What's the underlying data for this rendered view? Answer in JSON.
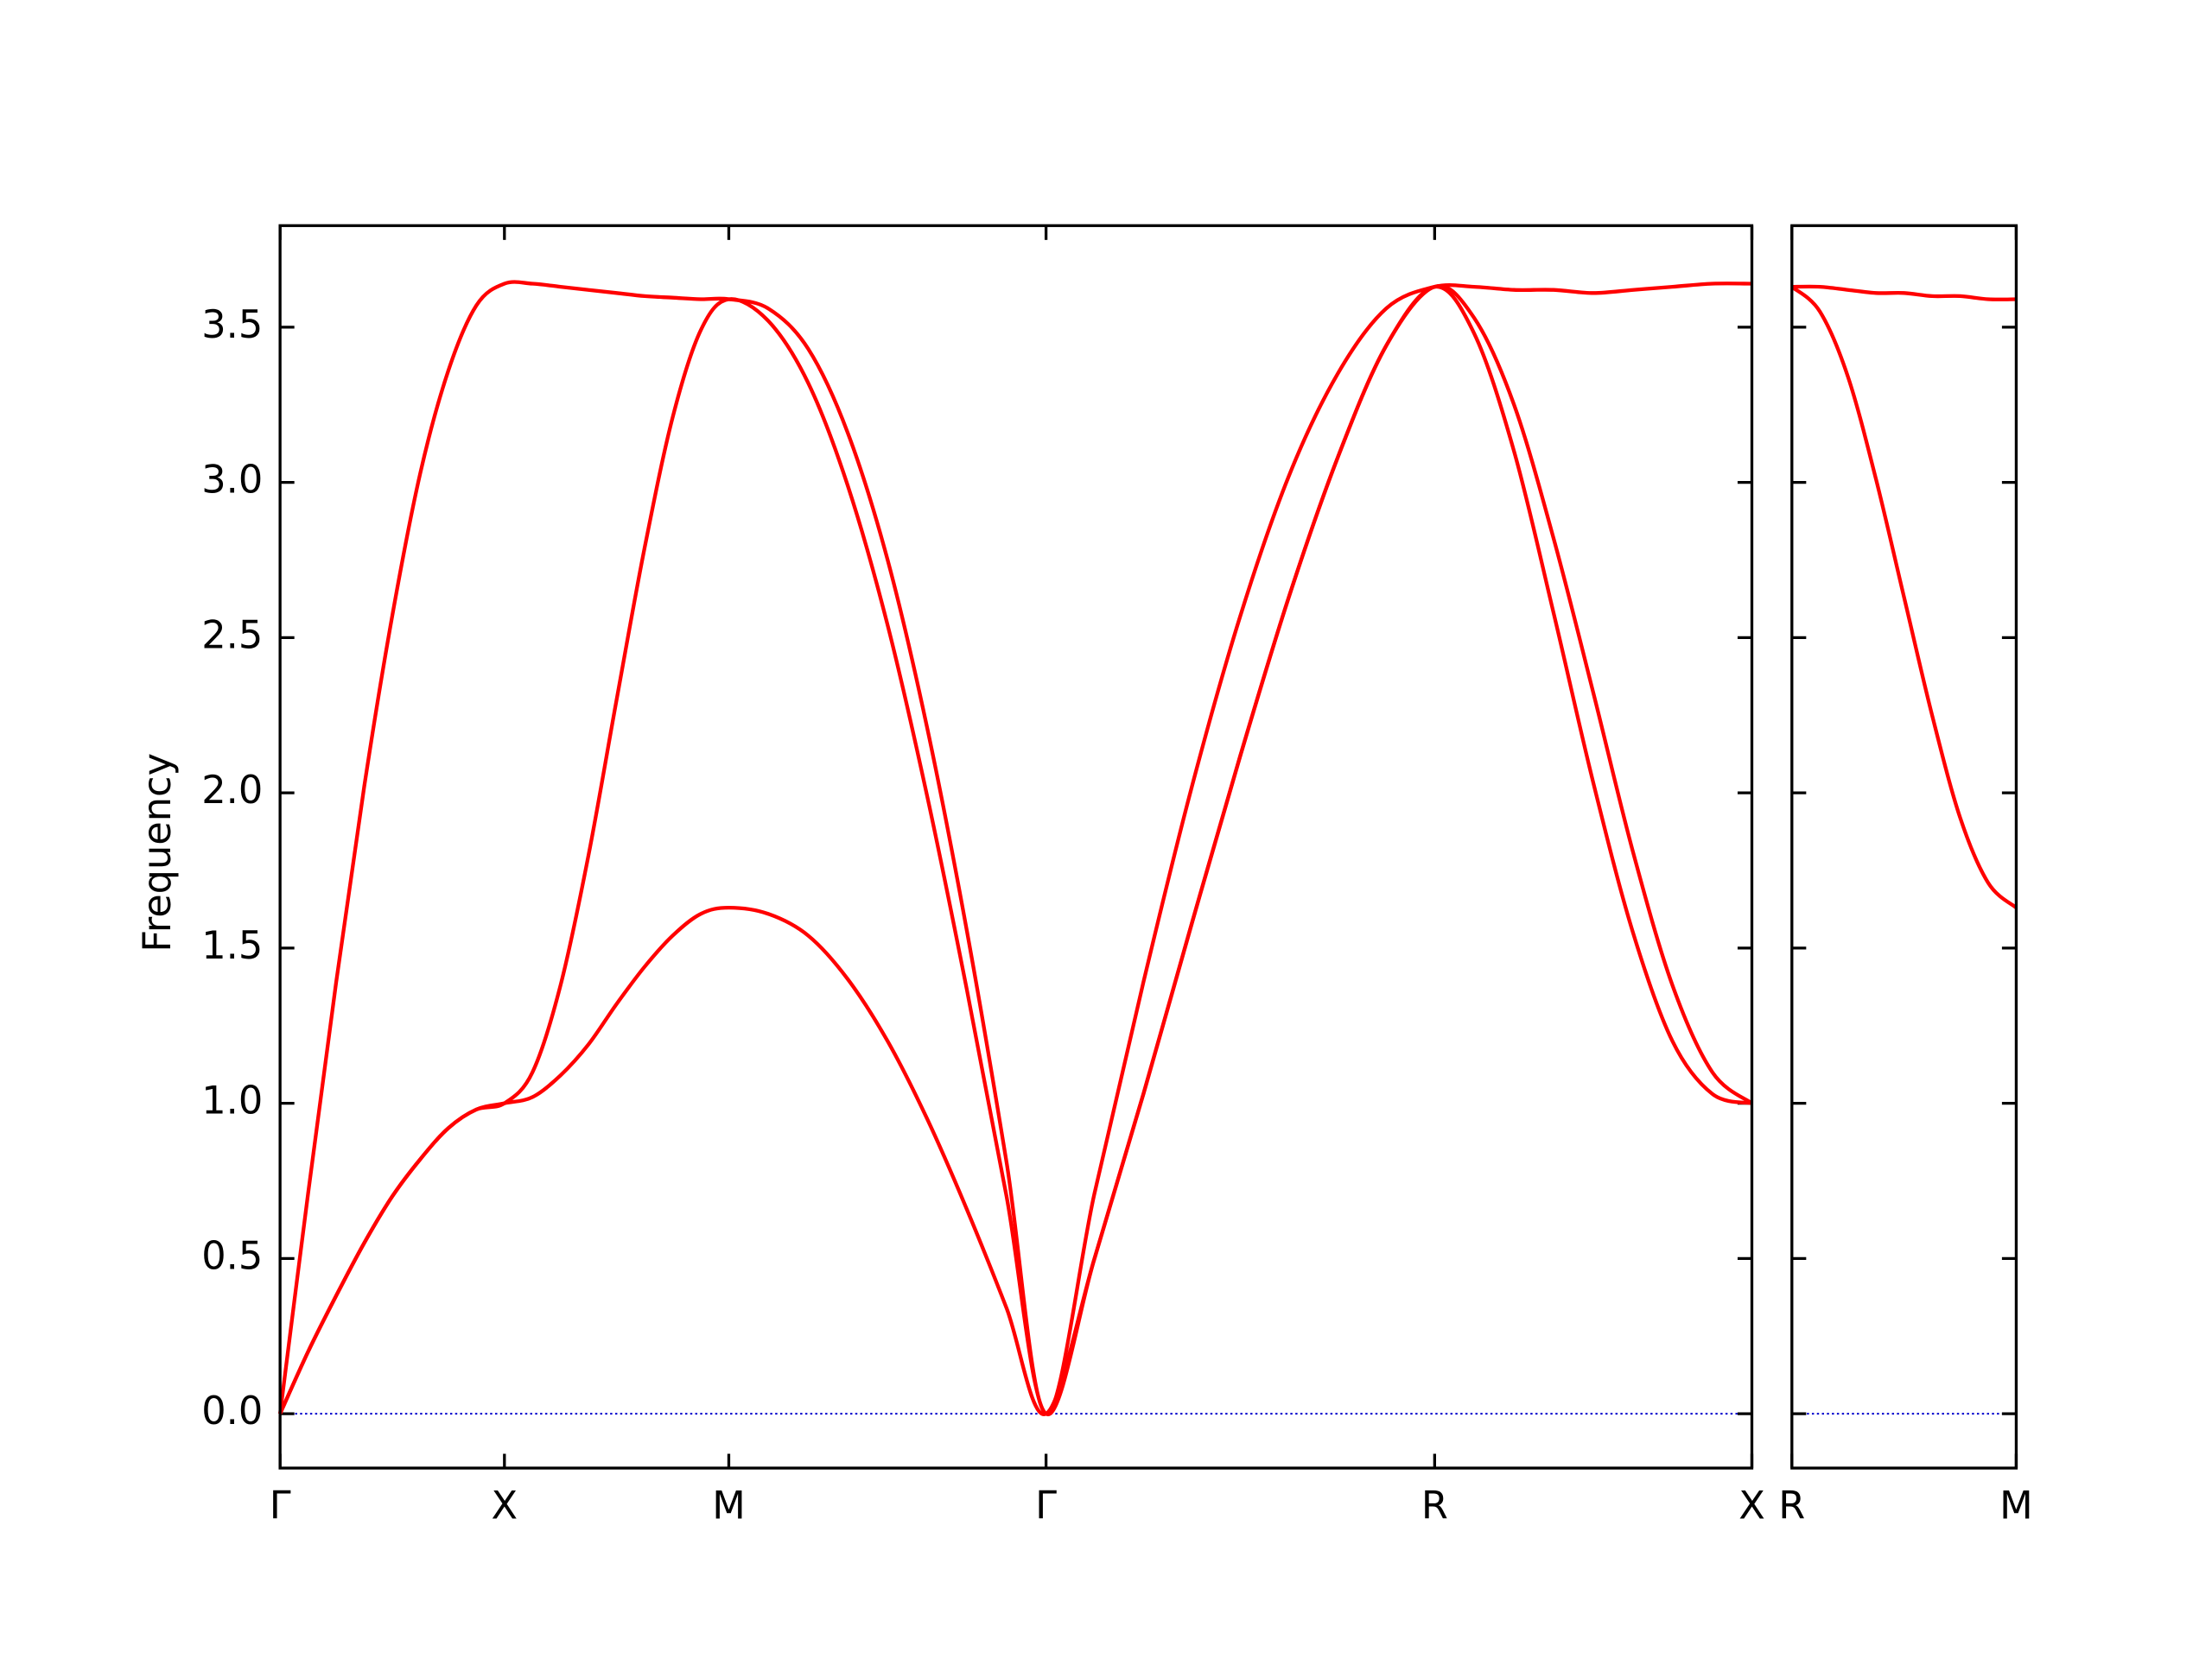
{
  "chart_data": [
    {
      "type": "line",
      "ylabel": "Frequency",
      "x": [
        0,
        0.0625,
        0.125,
        0.1875,
        0.25,
        0.3125,
        0.375,
        0.4375,
        0.5,
        0.5625,
        0.625,
        0.6875,
        0.75,
        0.8125,
        0.875,
        0.9375,
        1.0,
        1.088,
        1.177,
        1.265,
        1.354,
        1.442,
        1.53,
        1.619,
        1.707,
        1.815,
        1.924,
        2.032,
        2.14,
        2.248,
        2.357,
        2.465,
        2.573,
        2.661,
        2.75,
        2.838,
        2.927,
        3.015,
        3.103,
        3.192,
        3.28
      ],
      "series": [
        {
          "color": "#ff0000",
          "values": [
            0,
            0.2,
            0.38,
            0.55,
            0.7,
            0.82,
            0.92,
            0.98,
            1.0,
            1.02,
            1.09,
            1.19,
            1.32,
            1.44,
            1.54,
            1.61,
            1.63,
            1.61,
            1.54,
            1.4,
            1.2,
            0.95,
            0.66,
            0.34,
            0,
            0.5,
            1.03,
            1.58,
            2.12,
            2.63,
            3.08,
            3.44,
            3.63,
            3.48,
            3.1,
            2.58,
            2.03,
            1.55,
            1.2,
            1.03,
            1.0
          ]
        },
        {
          "color": "#ff0000",
          "values": [
            0,
            0.2,
            0.38,
            0.55,
            0.7,
            0.82,
            0.92,
            0.98,
            1.0,
            1.1,
            1.38,
            1.8,
            2.3,
            2.79,
            3.21,
            3.49,
            3.59,
            3.52,
            3.32,
            2.99,
            2.54,
            1.99,
            1.37,
            0.7,
            0,
            0.5,
            1.03,
            1.58,
            2.12,
            2.63,
            3.08,
            3.44,
            3.63,
            3.53,
            3.25,
            2.82,
            2.32,
            1.81,
            1.38,
            1.1,
            1.0
          ]
        },
        {
          "color": "#ff0000",
          "values": [
            0,
            0.71,
            1.39,
            2.02,
            2.57,
            3.03,
            3.36,
            3.57,
            3.64,
            3.64,
            3.63,
            3.62,
            3.61,
            3.6,
            3.595,
            3.59,
            3.59,
            3.56,
            3.43,
            3.16,
            2.75,
            2.21,
            1.56,
            0.81,
            0,
            0.71,
            1.39,
            2.02,
            2.57,
            3.02,
            3.35,
            3.56,
            3.63,
            3.63,
            3.62,
            3.62,
            3.61,
            3.62,
            3.63,
            3.64,
            3.64
          ]
        }
      ],
      "xlim": [
        0,
        3.28
      ],
      "ylim": [
        -0.175,
        3.827
      ],
      "xticks": [
        {
          "value": 0,
          "label": "Γ"
        },
        {
          "value": 0.5,
          "label": "X"
        },
        {
          "value": 1.0,
          "label": "M"
        },
        {
          "value": 1.707,
          "label": "Γ"
        },
        {
          "value": 2.573,
          "label": "R"
        },
        {
          "value": 3.28,
          "label": "X"
        }
      ],
      "yticks": [
        {
          "value": 0,
          "label": "0.0"
        },
        {
          "value": 0.5,
          "label": "0.5"
        },
        {
          "value": 1.0,
          "label": "1.0"
        },
        {
          "value": 1.5,
          "label": "1.5"
        },
        {
          "value": 2.0,
          "label": "2.0"
        },
        {
          "value": 2.5,
          "label": "2.5"
        },
        {
          "value": 3.0,
          "label": "3.0"
        },
        {
          "value": 3.5,
          "label": "3.5"
        }
      ],
      "zero_line": {
        "value": 0,
        "color": "#0000cc"
      }
    },
    {
      "type": "line",
      "x": [
        0,
        0.0625,
        0.125,
        0.1875,
        0.25,
        0.3125,
        0.375,
        0.4375,
        0.5
      ],
      "series": [
        {
          "color": "#ff0000",
          "values": [
            3.63,
            3.63,
            3.62,
            3.61,
            3.61,
            3.6,
            3.6,
            3.59,
            3.59
          ]
        },
        {
          "color": "#ff0000",
          "values": [
            3.63,
            3.55,
            3.34,
            3.01,
            2.63,
            2.25,
            1.92,
            1.71,
            1.63
          ]
        }
      ],
      "xlim": [
        0,
        0.5
      ],
      "ylim": [
        -0.175,
        3.827
      ],
      "xticks": [
        {
          "value": 0,
          "label": "R"
        },
        {
          "value": 0.5,
          "label": "M"
        }
      ],
      "yticks": [
        0,
        0.5,
        1.0,
        1.5,
        2.0,
        2.5,
        3.0,
        3.5
      ],
      "zero_line": {
        "value": 0,
        "color": "#0000cc"
      }
    }
  ]
}
